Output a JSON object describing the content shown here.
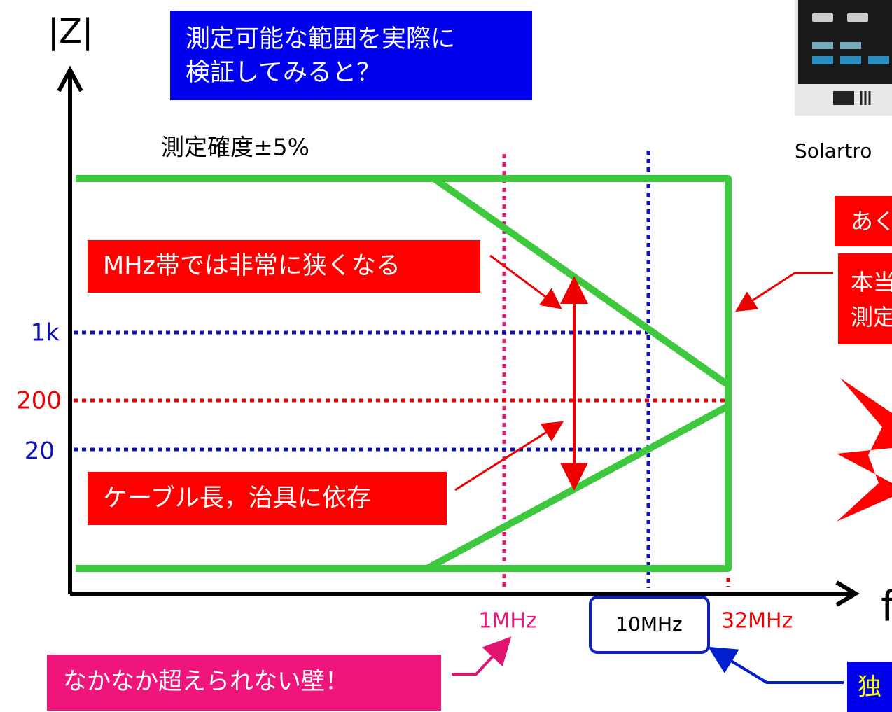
{
  "title": {
    "lines": [
      "測定可能な範囲を実際に",
      "検証してみると？"
    ]
  },
  "axes": {
    "y_label": "|Z|",
    "x_label": "f"
  },
  "accuracy_label": "測定確度±5%",
  "y_levels": [
    "1k",
    "200",
    "20"
  ],
  "x_levels": [
    "1MHz",
    "10MHz",
    "32MHz"
  ],
  "callouts": {
    "narrow": "MHz帯では非常に狭くなる",
    "cable": "ケーブル長，治具に依存",
    "wall": "なかなか超えられない壁！"
  },
  "side": {
    "device_caption": "Solartro",
    "note1": "あく",
    "note2": [
      "本当",
      "測定"
    ],
    "note3": "独"
  }
}
